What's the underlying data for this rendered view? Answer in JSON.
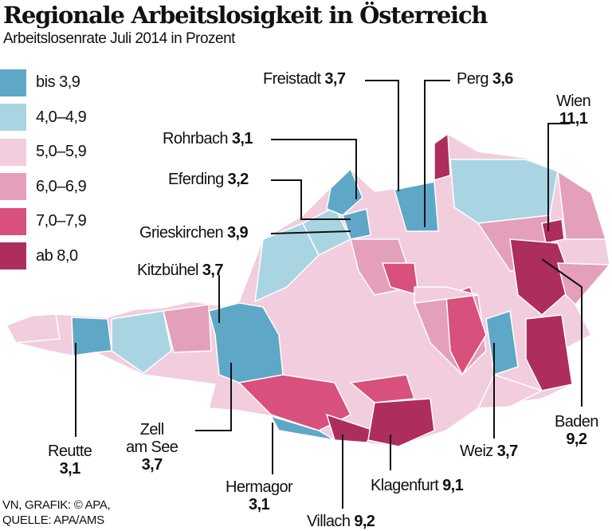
{
  "title": "Regionale Arbeitslosigkeit in Österreich",
  "subtitle": "Arbeitslosenrate Juli 2014 in Prozent",
  "legend": [
    {
      "label": "bis 3,9",
      "color": "#5ea7c7"
    },
    {
      "label": "4,0–4,9",
      "color": "#a9d5e3"
    },
    {
      "label": "5,0–5,9",
      "color": "#f2cddd"
    },
    {
      "label": "6,0–6,9",
      "color": "#e49fbb"
    },
    {
      "label": "7,0–7,9",
      "color": "#d8507c"
    },
    {
      "label": "ab 8,0",
      "color": "#ad2d5d"
    }
  ],
  "districts": [
    {
      "name": "Freistadt",
      "value": "3,7"
    },
    {
      "name": "Perg",
      "value": "3,6"
    },
    {
      "name": "Wien",
      "value": "11,1"
    },
    {
      "name": "Rohrbach",
      "value": "3,1"
    },
    {
      "name": "Eferding",
      "value": "3,2"
    },
    {
      "name": "Grieskirchen",
      "value": "3,9"
    },
    {
      "name": "Kitzbühel",
      "value": "3,7"
    },
    {
      "name": "Reutte",
      "value": "3,1"
    },
    {
      "name": "Zell am See",
      "name_line1": "Zell",
      "name_line2": "am See",
      "value": "3,7"
    },
    {
      "name": "Hermagor",
      "value": "3,1"
    },
    {
      "name": "Villach",
      "value": "9,2"
    },
    {
      "name": "Klagenfurt",
      "value": "9,1"
    },
    {
      "name": "Weiz",
      "value": "3,7"
    },
    {
      "name": "Baden",
      "value": "9,2"
    }
  ],
  "credit": {
    "line1": "VN, GRAFIK: © APA,",
    "line2": "QUELLE: APA/AMS"
  }
}
